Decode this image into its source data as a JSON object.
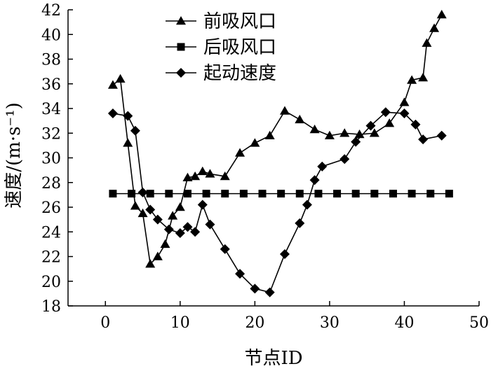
{
  "chart_data": {
    "type": "line",
    "xlabel": "节点ID",
    "ylabel": "速度/(m·s⁻¹)",
    "xlim": [
      -5,
      50
    ],
    "ylim": [
      18,
      42
    ],
    "x_ticks": [
      "0",
      "10",
      "20",
      "30",
      "40",
      "50"
    ],
    "y_ticks": [
      "18",
      "20",
      "22",
      "24",
      "26",
      "28",
      "30",
      "32",
      "34",
      "36",
      "38",
      "40",
      "42"
    ],
    "grid": false,
    "legend_position": "top-left",
    "series": [
      {
        "name": "前吸风口",
        "marker": "triangle",
        "points": [
          [
            1,
            35.9
          ],
          [
            2,
            36.4
          ],
          [
            3,
            31.2
          ],
          [
            4,
            26.1
          ],
          [
            5,
            25.5
          ],
          [
            6,
            21.4
          ],
          [
            7,
            22.0
          ],
          [
            8,
            23.0
          ],
          [
            9,
            25.3
          ],
          [
            10,
            26.0
          ],
          [
            11,
            28.4
          ],
          [
            12,
            28.5
          ],
          [
            13,
            28.9
          ],
          [
            14,
            28.7
          ],
          [
            16,
            28.5
          ],
          [
            18,
            30.4
          ],
          [
            20,
            31.2
          ],
          [
            22,
            31.8
          ],
          [
            24,
            33.8
          ],
          [
            26,
            33.1
          ],
          [
            28,
            32.3
          ],
          [
            30,
            31.8
          ],
          [
            32,
            32.0
          ],
          [
            34,
            31.9
          ],
          [
            36,
            32.0
          ],
          [
            38,
            32.8
          ],
          [
            40,
            34.5
          ],
          [
            41,
            36.3
          ],
          [
            42.5,
            36.5
          ],
          [
            43,
            39.3
          ],
          [
            44,
            40.5
          ],
          [
            45,
            41.6
          ]
        ]
      },
      {
        "name": "后吸风口",
        "marker": "square",
        "points": [
          [
            1,
            27.1
          ],
          [
            3.5,
            27.1
          ],
          [
            6,
            27.1
          ],
          [
            8.5,
            27.1
          ],
          [
            11,
            27.1
          ],
          [
            13.5,
            27.1
          ],
          [
            16,
            27.1
          ],
          [
            18.5,
            27.1
          ],
          [
            21,
            27.1
          ],
          [
            23.5,
            27.1
          ],
          [
            26,
            27.1
          ],
          [
            28.5,
            27.1
          ],
          [
            31,
            27.1
          ],
          [
            33.5,
            27.1
          ],
          [
            36,
            27.1
          ],
          [
            38.5,
            27.1
          ],
          [
            41,
            27.1
          ],
          [
            43.5,
            27.1
          ],
          [
            46,
            27.1
          ]
        ]
      },
      {
        "name": "起动速度",
        "marker": "diamond",
        "points": [
          [
            1,
            33.6
          ],
          [
            3,
            33.4
          ],
          [
            4,
            32.2
          ],
          [
            5,
            27.2
          ],
          [
            6,
            25.8
          ],
          [
            7,
            25.0
          ],
          [
            8.5,
            24.2
          ],
          [
            10,
            23.9
          ],
          [
            11,
            24.4
          ],
          [
            12,
            24.0
          ],
          [
            13,
            26.2
          ],
          [
            14,
            24.6
          ],
          [
            16,
            22.6
          ],
          [
            18,
            20.6
          ],
          [
            20,
            19.4
          ],
          [
            22,
            19.1
          ],
          [
            24,
            22.2
          ],
          [
            26,
            24.7
          ],
          [
            27,
            26.2
          ],
          [
            28,
            28.2
          ],
          [
            29,
            29.3
          ],
          [
            32,
            29.9
          ],
          [
            33.5,
            31.3
          ],
          [
            35.5,
            32.6
          ],
          [
            37.5,
            33.7
          ],
          [
            40,
            33.6
          ],
          [
            41.5,
            32.7
          ],
          [
            42.5,
            31.5
          ],
          [
            45,
            31.8
          ]
        ]
      }
    ]
  }
}
